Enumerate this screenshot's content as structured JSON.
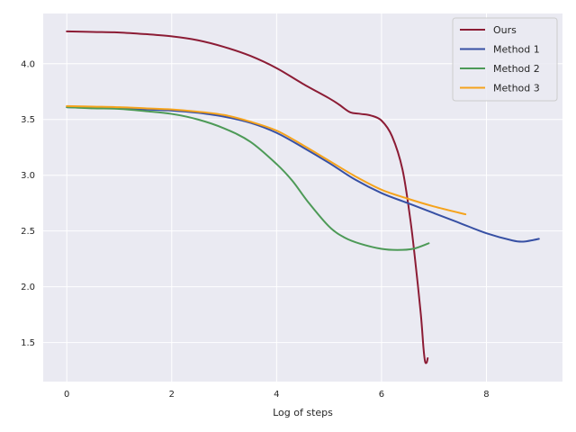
{
  "chart_data": {
    "type": "line",
    "title": "",
    "xlabel": "Log of steps",
    "ylabel": "",
    "xlim": [
      -0.45,
      9.45
    ],
    "ylim": [
      1.15,
      4.45
    ],
    "xticks": [
      0,
      2,
      4,
      6,
      8
    ],
    "yticks": [
      1.5,
      2.0,
      2.5,
      3.0,
      3.5,
      4.0
    ],
    "xtick_labels": [
      "0",
      "2",
      "4",
      "6",
      "8"
    ],
    "ytick_labels": [
      "1.5",
      "2.0",
      "2.5",
      "3.0",
      "3.5",
      "4.0"
    ],
    "grid": true,
    "background": "#eaeaf2",
    "legend_position": "top-right",
    "series": [
      {
        "name": "Ours",
        "color": "#8c1c35",
        "points": [
          [
            0,
            4.29
          ],
          [
            0.5,
            4.285
          ],
          [
            1,
            4.28
          ],
          [
            1.5,
            4.265
          ],
          [
            2,
            4.245
          ],
          [
            2.5,
            4.21
          ],
          [
            3,
            4.15
          ],
          [
            3.5,
            4.07
          ],
          [
            4,
            3.96
          ],
          [
            4.5,
            3.82
          ],
          [
            5,
            3.69
          ],
          [
            5.2,
            3.63
          ],
          [
            5.4,
            3.565
          ],
          [
            5.6,
            3.55
          ],
          [
            5.8,
            3.535
          ],
          [
            6,
            3.49
          ],
          [
            6.2,
            3.35
          ],
          [
            6.4,
            3.05
          ],
          [
            6.55,
            2.6
          ],
          [
            6.65,
            2.2
          ],
          [
            6.75,
            1.75
          ],
          [
            6.8,
            1.45
          ],
          [
            6.83,
            1.33
          ],
          [
            6.86,
            1.32
          ],
          [
            6.88,
            1.36
          ]
        ]
      },
      {
        "name": "Method 1",
        "color": "#3750a4",
        "points": [
          [
            0,
            3.61
          ],
          [
            0.5,
            3.605
          ],
          [
            1,
            3.6
          ],
          [
            1.5,
            3.59
          ],
          [
            2,
            3.58
          ],
          [
            2.5,
            3.56
          ],
          [
            3,
            3.525
          ],
          [
            3.5,
            3.47
          ],
          [
            4,
            3.38
          ],
          [
            4.5,
            3.25
          ],
          [
            5,
            3.11
          ],
          [
            5.5,
            2.96
          ],
          [
            6,
            2.84
          ],
          [
            6.5,
            2.75
          ],
          [
            7,
            2.66
          ],
          [
            7.5,
            2.57
          ],
          [
            8,
            2.48
          ],
          [
            8.5,
            2.415
          ],
          [
            8.7,
            2.405
          ],
          [
            8.9,
            2.42
          ],
          [
            9,
            2.43
          ]
        ]
      },
      {
        "name": "Method 2",
        "color": "#4d9a57",
        "points": [
          [
            0,
            3.61
          ],
          [
            0.5,
            3.6
          ],
          [
            1,
            3.595
          ],
          [
            1.5,
            3.575
          ],
          [
            2,
            3.55
          ],
          [
            2.5,
            3.5
          ],
          [
            3,
            3.42
          ],
          [
            3.5,
            3.3
          ],
          [
            4,
            3.1
          ],
          [
            4.3,
            2.95
          ],
          [
            4.6,
            2.76
          ],
          [
            5,
            2.54
          ],
          [
            5.3,
            2.44
          ],
          [
            5.6,
            2.385
          ],
          [
            6,
            2.34
          ],
          [
            6.3,
            2.33
          ],
          [
            6.6,
            2.34
          ],
          [
            6.9,
            2.39
          ]
        ]
      },
      {
        "name": "Method 3",
        "color": "#f5a31c",
        "points": [
          [
            0,
            3.62
          ],
          [
            0.5,
            3.615
          ],
          [
            1,
            3.61
          ],
          [
            1.5,
            3.6
          ],
          [
            2,
            3.59
          ],
          [
            2.5,
            3.57
          ],
          [
            3,
            3.54
          ],
          [
            3.5,
            3.48
          ],
          [
            4,
            3.4
          ],
          [
            4.5,
            3.27
          ],
          [
            5,
            3.13
          ],
          [
            5.5,
            2.99
          ],
          [
            6,
            2.87
          ],
          [
            6.5,
            2.79
          ],
          [
            7,
            2.72
          ],
          [
            7.6,
            2.65
          ]
        ]
      }
    ]
  }
}
